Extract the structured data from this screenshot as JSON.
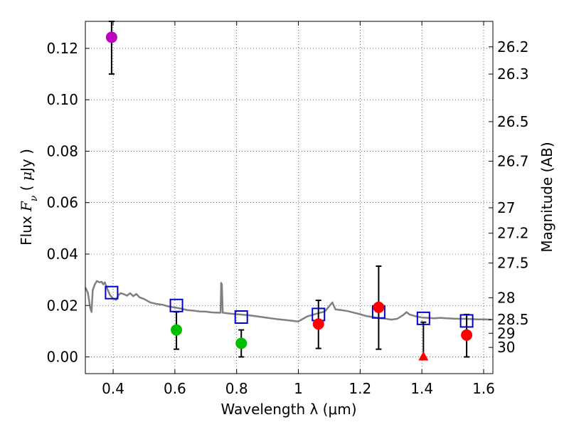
{
  "chart_data": {
    "type": "scatter",
    "xlabel": "Wavelength  λ (μm)",
    "ylabel": "Flux  F_ν  ( μJy )",
    "ylabel_right": "Magnitude (AB)",
    "xlim": [
      0.31,
      1.63
    ],
    "ylim": [
      -0.0065,
      0.1305
    ],
    "grid": true,
    "x_ticks": [
      {
        "value": 0.4,
        "label": "0.4"
      },
      {
        "value": 0.6,
        "label": "0.6"
      },
      {
        "value": 0.8,
        "label": "0.8"
      },
      {
        "value": 1.0,
        "label": "1"
      },
      {
        "value": 1.2,
        "label": "1.2"
      },
      {
        "value": 1.4,
        "label": "1.4"
      },
      {
        "value": 1.6,
        "label": "1.6"
      }
    ],
    "y_ticks": [
      {
        "value": 0.0,
        "label": "0.00"
      },
      {
        "value": 0.02,
        "label": "0.02"
      },
      {
        "value": 0.04,
        "label": "0.04"
      },
      {
        "value": 0.06,
        "label": "0.06"
      },
      {
        "value": 0.08,
        "label": "0.08"
      },
      {
        "value": 0.1,
        "label": "0.10"
      },
      {
        "value": 0.12,
        "label": "0.12"
      }
    ],
    "mag_ticks": [
      {
        "flux": 0.1206,
        "label": "26.2"
      },
      {
        "flux": 0.11,
        "label": "26.3"
      },
      {
        "flux": 0.0915,
        "label": "26.5"
      },
      {
        "flux": 0.0761,
        "label": "26.7"
      },
      {
        "flux": 0.058,
        "label": "27"
      },
      {
        "flux": 0.0481,
        "label": "27.2"
      },
      {
        "flux": 0.0365,
        "label": "27.5"
      },
      {
        "flux": 0.023,
        "label": "28"
      },
      {
        "flux": 0.0145,
        "label": "28.5"
      },
      {
        "flux": 0.0092,
        "label": "29"
      },
      {
        "flux": 0.0037,
        "label": "30"
      }
    ],
    "series": [
      {
        "name": "model SED",
        "kind": "line",
        "color": "#808080",
        "points": [
          [
            0.31,
            0.027
          ],
          [
            0.318,
            0.025
          ],
          [
            0.322,
            0.022
          ],
          [
            0.326,
            0.019
          ],
          [
            0.33,
            0.0175
          ],
          [
            0.334,
            0.026
          ],
          [
            0.34,
            0.028
          ],
          [
            0.347,
            0.0295
          ],
          [
            0.356,
            0.029
          ],
          [
            0.363,
            0.0292
          ],
          [
            0.368,
            0.0282
          ],
          [
            0.373,
            0.029
          ],
          [
            0.38,
            0.0268
          ],
          [
            0.39,
            0.024
          ],
          [
            0.4,
            0.0227
          ],
          [
            0.41,
            0.0222
          ],
          [
            0.418,
            0.0242
          ],
          [
            0.425,
            0.0248
          ],
          [
            0.435,
            0.0244
          ],
          [
            0.445,
            0.0238
          ],
          [
            0.455,
            0.0248
          ],
          [
            0.465,
            0.0236
          ],
          [
            0.475,
            0.0245
          ],
          [
            0.485,
            0.0232
          ],
          [
            0.5,
            0.0225
          ],
          [
            0.52,
            0.0212
          ],
          [
            0.54,
            0.0206
          ],
          [
            0.56,
            0.0203
          ],
          [
            0.58,
            0.0196
          ],
          [
            0.6,
            0.0192
          ],
          [
            0.62,
            0.0188
          ],
          [
            0.64,
            0.0182
          ],
          [
            0.66,
            0.018
          ],
          [
            0.68,
            0.0177
          ],
          [
            0.7,
            0.0176
          ],
          [
            0.72,
            0.0173
          ],
          [
            0.74,
            0.0172
          ],
          [
            0.748,
            0.0172
          ],
          [
            0.75,
            0.0288
          ],
          [
            0.752,
            0.0282
          ],
          [
            0.755,
            0.0172
          ],
          [
            0.78,
            0.0168
          ],
          [
            0.81,
            0.0165
          ],
          [
            0.84,
            0.0162
          ],
          [
            0.87,
            0.0157
          ],
          [
            0.9,
            0.0152
          ],
          [
            0.93,
            0.0147
          ],
          [
            0.96,
            0.0143
          ],
          [
            0.99,
            0.0139
          ],
          [
            1.0,
            0.0138
          ],
          [
            1.01,
            0.0145
          ],
          [
            1.03,
            0.0158
          ],
          [
            1.05,
            0.0165
          ],
          [
            1.07,
            0.0172
          ],
          [
            1.085,
            0.0176
          ],
          [
            1.1,
            0.0197
          ],
          [
            1.11,
            0.0212
          ],
          [
            1.12,
            0.0185
          ],
          [
            1.14,
            0.0182
          ],
          [
            1.16,
            0.0178
          ],
          [
            1.18,
            0.0172
          ],
          [
            1.2,
            0.0166
          ],
          [
            1.22,
            0.0159
          ],
          [
            1.24,
            0.0155
          ],
          [
            1.26,
            0.0151
          ],
          [
            1.28,
            0.0149
          ],
          [
            1.3,
            0.0145
          ],
          [
            1.32,
            0.0148
          ],
          [
            1.34,
            0.0163
          ],
          [
            1.35,
            0.0174
          ],
          [
            1.36,
            0.0165
          ],
          [
            1.38,
            0.0158
          ],
          [
            1.4,
            0.0153
          ],
          [
            1.42,
            0.0152
          ],
          [
            1.44,
            0.015
          ],
          [
            1.46,
            0.0152
          ],
          [
            1.48,
            0.015
          ],
          [
            1.5,
            0.0149
          ],
          [
            1.52,
            0.0148
          ],
          [
            1.54,
            0.0148
          ],
          [
            1.56,
            0.0147
          ],
          [
            1.58,
            0.0146
          ],
          [
            1.6,
            0.0146
          ],
          [
            1.625,
            0.0145
          ]
        ]
      },
      {
        "name": "model band fluxes",
        "kind": "open-square",
        "color": "#0000cc",
        "x": [
          0.395,
          0.605,
          0.815,
          1.065,
          1.26,
          1.405,
          1.545
        ],
        "y": [
          0.025,
          0.02,
          0.0155,
          0.0165,
          0.0175,
          0.015,
          0.014
        ]
      },
      {
        "name": "observed (magenta)",
        "kind": "dot",
        "color": "#bf00bf",
        "x": [
          0.395
        ],
        "y": [
          0.1243
        ],
        "yerr_lo": [
          0.0143
        ],
        "yerr_hi": [
          0.0062
        ]
      },
      {
        "name": "observed (green)",
        "kind": "dot",
        "color": "#00bf00",
        "x": [
          0.605,
          0.815
        ],
        "y": [
          0.0105,
          0.0053
        ],
        "yerr_lo": [
          0.0075,
          0.0053
        ],
        "yerr_hi": [
          0.007,
          0.0052
        ]
      },
      {
        "name": "observed (red)",
        "kind": "dot",
        "color": "#ff0000",
        "x": [
          1.065,
          1.26,
          1.545
        ],
        "y": [
          0.0128,
          0.0193,
          0.0085
        ],
        "yerr_lo": [
          0.0095,
          0.0163,
          0.0085
        ],
        "yerr_hi": [
          0.0092,
          0.016,
          0.008
        ]
      },
      {
        "name": "upper limit (red)",
        "kind": "triangle",
        "color": "#ff0000",
        "x": [
          1.405
        ],
        "y": [
          0.0
        ],
        "yerr_lo": [
          0.0
        ],
        "yerr_hi": [
          0.0135
        ]
      }
    ]
  }
}
